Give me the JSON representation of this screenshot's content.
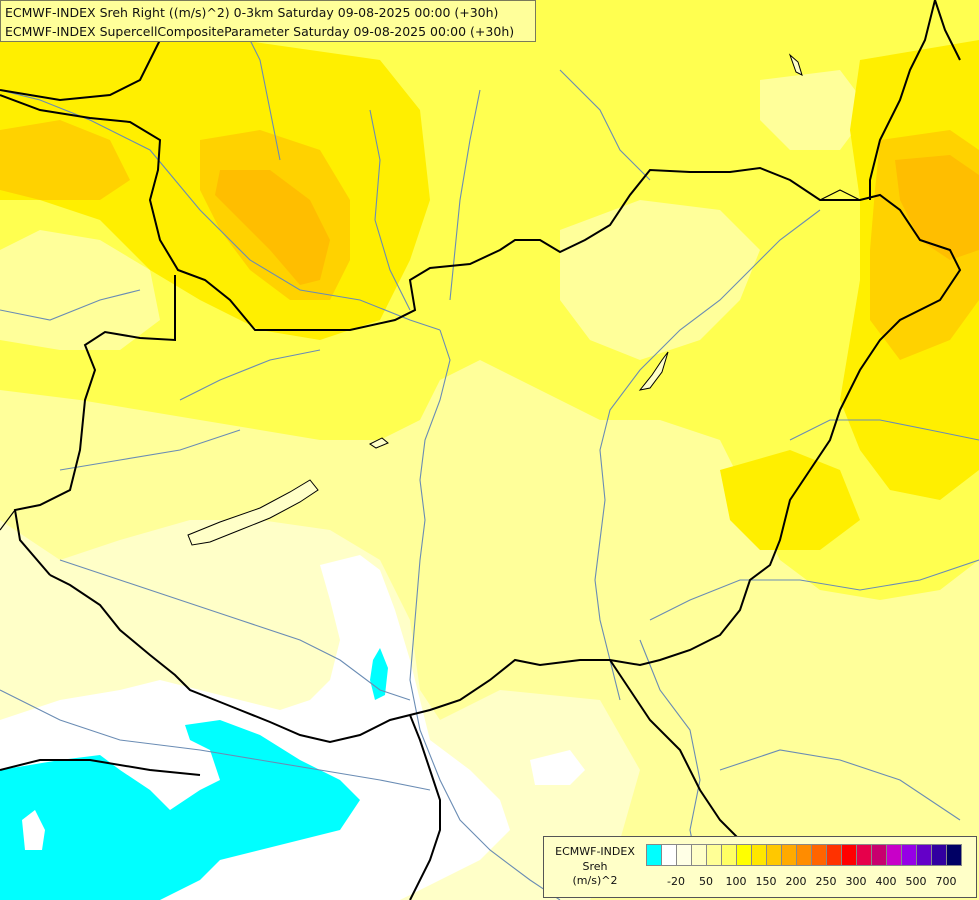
{
  "header": {
    "line1": "ECMWF-INDEX Sreh Right ((m/s)^2) 0-3km Saturday 09-08-2025 00:00 (+30h)",
    "line2": "ECMWF-INDEX SupercellCompositeParameter Saturday 09-08-2025 00:00 (+30h)"
  },
  "legend": {
    "title_line1": "ECMWF-INDEX",
    "title_line2": "Sreh",
    "title_line3": "(m/s)^2",
    "swatch_colors": [
      "#00ffff",
      "#ffffff",
      "#ffffe6",
      "#ffffc8",
      "#ffff96",
      "#ffff64",
      "#ffff00",
      "#ffe600",
      "#ffc800",
      "#ffaa00",
      "#ff8c00",
      "#ff6400",
      "#ff3200",
      "#ff0000",
      "#e6004b",
      "#c8006e",
      "#c800c8",
      "#9600e6",
      "#6400c8",
      "#3200a0",
      "#000064"
    ],
    "tick_labels": [
      "-20",
      "50",
      "100",
      "150",
      "200",
      "250",
      "300",
      "400",
      "500",
      "700"
    ]
  },
  "map_colors": {
    "background": "#ffffc8",
    "pale": "#ffff9a",
    "yellow": "#ffff50",
    "bright": "#ffef00",
    "orange": "#ffd200",
    "deep_orange": "#ffbe00",
    "white": "#ffffff",
    "cyan": "#00ffff",
    "border": "#000000",
    "river": "#6a8cb4"
  }
}
